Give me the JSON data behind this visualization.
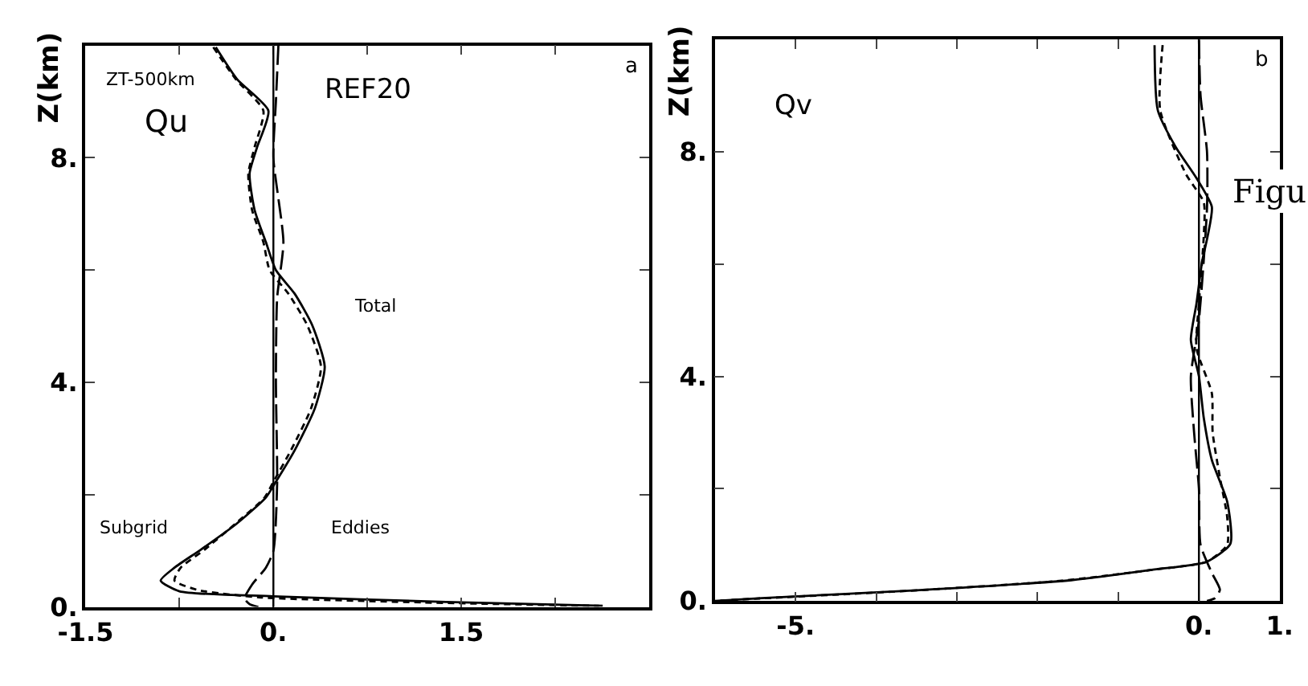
{
  "chart_data": [
    {
      "type": "line",
      "ylabel": "Z(km)",
      "xlim": [
        -1.5,
        3.0
      ],
      "ylim": [
        0,
        10
      ],
      "xticks": [
        {
          "value": -1.5,
          "label": "-1.5"
        },
        {
          "value": -0.75,
          "label": null
        },
        {
          "value": 0,
          "label": "0."
        },
        {
          "value": 0.75,
          "label": null
        },
        {
          "value": 1.5,
          "label": "1.5"
        },
        {
          "value": 2.25,
          "label": null
        }
      ],
      "yticks": [
        {
          "value": 0,
          "label": "0."
        },
        {
          "value": 2,
          "label": null
        },
        {
          "value": 4,
          "label": "4."
        },
        {
          "value": 6,
          "label": null
        },
        {
          "value": 8,
          "label": "8."
        }
      ],
      "series": [
        {
          "color": "#000000",
          "line_style": "solid",
          "x": [
            -0.46,
            -0.29,
            -0.04,
            -0.13,
            -0.19,
            -0.15,
            -0.06,
            0.02,
            0.17,
            0.31,
            0.41,
            0.33,
            0.17,
            0.02,
            -0.06,
            -0.29,
            -0.58,
            -0.79,
            -0.9,
            -0.75,
            0.0,
            1.38,
            2.63
          ],
          "values": [
            9.97,
            9.4,
            8.84,
            8.19,
            7.72,
            7.07,
            6.5,
            6.0,
            5.58,
            5.02,
            4.28,
            3.53,
            2.79,
            2.23,
            1.95,
            1.49,
            1.02,
            0.7,
            0.47,
            0.28,
            0.19,
            0.09,
            0.02
          ]
        },
        {
          "color": "#000000",
          "line_style": "dotted",
          "x": [
            -0.48,
            -0.3,
            -0.08,
            -0.15,
            -0.2,
            -0.17,
            -0.08,
            -0.03,
            0.12,
            0.27,
            0.38,
            0.3,
            0.14,
            0.0,
            -0.07,
            -0.3,
            -0.55,
            -0.74,
            -0.79,
            -0.6,
            -0.1,
            1.2,
            2.6
          ],
          "values": [
            9.97,
            9.4,
            8.84,
            8.19,
            7.72,
            7.07,
            6.5,
            6.0,
            5.58,
            5.02,
            4.28,
            3.53,
            2.79,
            2.23,
            1.95,
            1.49,
            1.02,
            0.7,
            0.47,
            0.3,
            0.17,
            0.08,
            0.02
          ]
        },
        {
          "color": "#000000",
          "line_style": "dashed",
          "x": [
            0.04,
            0.02,
            0.0,
            0.08,
            0.03,
            0.02,
            0.03,
            0.0,
            -0.06,
            -0.17,
            -0.23,
            -0.19,
            -0.12
          ],
          "values": [
            10.0,
            9.0,
            8.0,
            6.5,
            5.5,
            4.0,
            2.2,
            1.0,
            0.7,
            0.4,
            0.15,
            0.05,
            0.0
          ]
        }
      ],
      "ref_lines": [
        {
          "axis": "x",
          "value": 0,
          "color": "#000000",
          "line_style": "solid"
        }
      ],
      "annotations": [
        "ZT-500km",
        "Qu",
        "REF20",
        "a",
        "Total",
        "Subgrid",
        "Eddies"
      ]
    },
    {
      "type": "line",
      "ylabel": "Z(km)",
      "xlim": [
        -6,
        1
      ],
      "ylim": [
        0,
        10
      ],
      "xticks": [
        {
          "value": -5,
          "label": "-5."
        },
        {
          "value": -4,
          "label": null
        },
        {
          "value": -3,
          "label": null
        },
        {
          "value": -2,
          "label": null
        },
        {
          "value": -1,
          "label": null
        },
        {
          "value": 0,
          "label": "0."
        },
        {
          "value": 1,
          "label": "1."
        }
      ],
      "yticks": [
        {
          "value": 0,
          "label": "0."
        },
        {
          "value": 2,
          "label": null
        },
        {
          "value": 4,
          "label": "4."
        },
        {
          "value": 6,
          "label": null
        },
        {
          "value": 8,
          "label": "8."
        }
      ],
      "series": [
        {
          "color": "#000000",
          "line_style": "solid",
          "x": [
            -0.55,
            -0.51,
            -0.29,
            -0.03,
            0.16,
            0.11,
            0.04,
            -0.03,
            -0.1,
            0.0,
            0.06,
            0.16,
            0.35,
            0.39,
            0.1,
            -0.55,
            -1.58,
            -3.5,
            -5.42,
            -6.0
          ],
          "values": [
            9.9,
            8.74,
            8.09,
            7.53,
            7.02,
            6.51,
            6.05,
            5.3,
            4.65,
            4.0,
            3.26,
            2.51,
            1.77,
            1.02,
            0.7,
            0.56,
            0.37,
            0.19,
            0.05,
            0.0
          ]
        },
        {
          "color": "#000000",
          "line_style": "dotted",
          "x": [
            -0.45,
            -0.48,
            -0.16,
            0.06,
            0.06,
            0.0,
            -0.03,
            0.16,
            0.17,
            0.26,
            0.35,
            0.35,
            0.1,
            -0.6,
            -1.7,
            -3.6,
            -5.5,
            -6.0
          ],
          "values": [
            9.9,
            8.74,
            7.6,
            7.1,
            6.5,
            5.3,
            4.5,
            3.7,
            3.0,
            2.2,
            1.5,
            1.0,
            0.7,
            0.55,
            0.36,
            0.18,
            0.04,
            0.0
          ]
        },
        {
          "color": "#000000",
          "line_style": "dashed",
          "x": [
            0.0,
            0.02,
            0.1,
            0.1,
            0.0,
            -0.1,
            -0.06,
            0.0,
            0.02,
            0.16,
            0.26,
            0.2,
            0.1
          ],
          "values": [
            10.0,
            9.0,
            8.0,
            7.0,
            5.0,
            4.0,
            3.0,
            2.0,
            1.0,
            0.5,
            0.2,
            0.05,
            0.0
          ]
        }
      ],
      "ref_lines": [
        {
          "axis": "x",
          "value": 0,
          "color": "#000000",
          "line_style": "solid"
        }
      ],
      "annotations": [
        "Qv",
        "b",
        "Figu"
      ]
    }
  ]
}
